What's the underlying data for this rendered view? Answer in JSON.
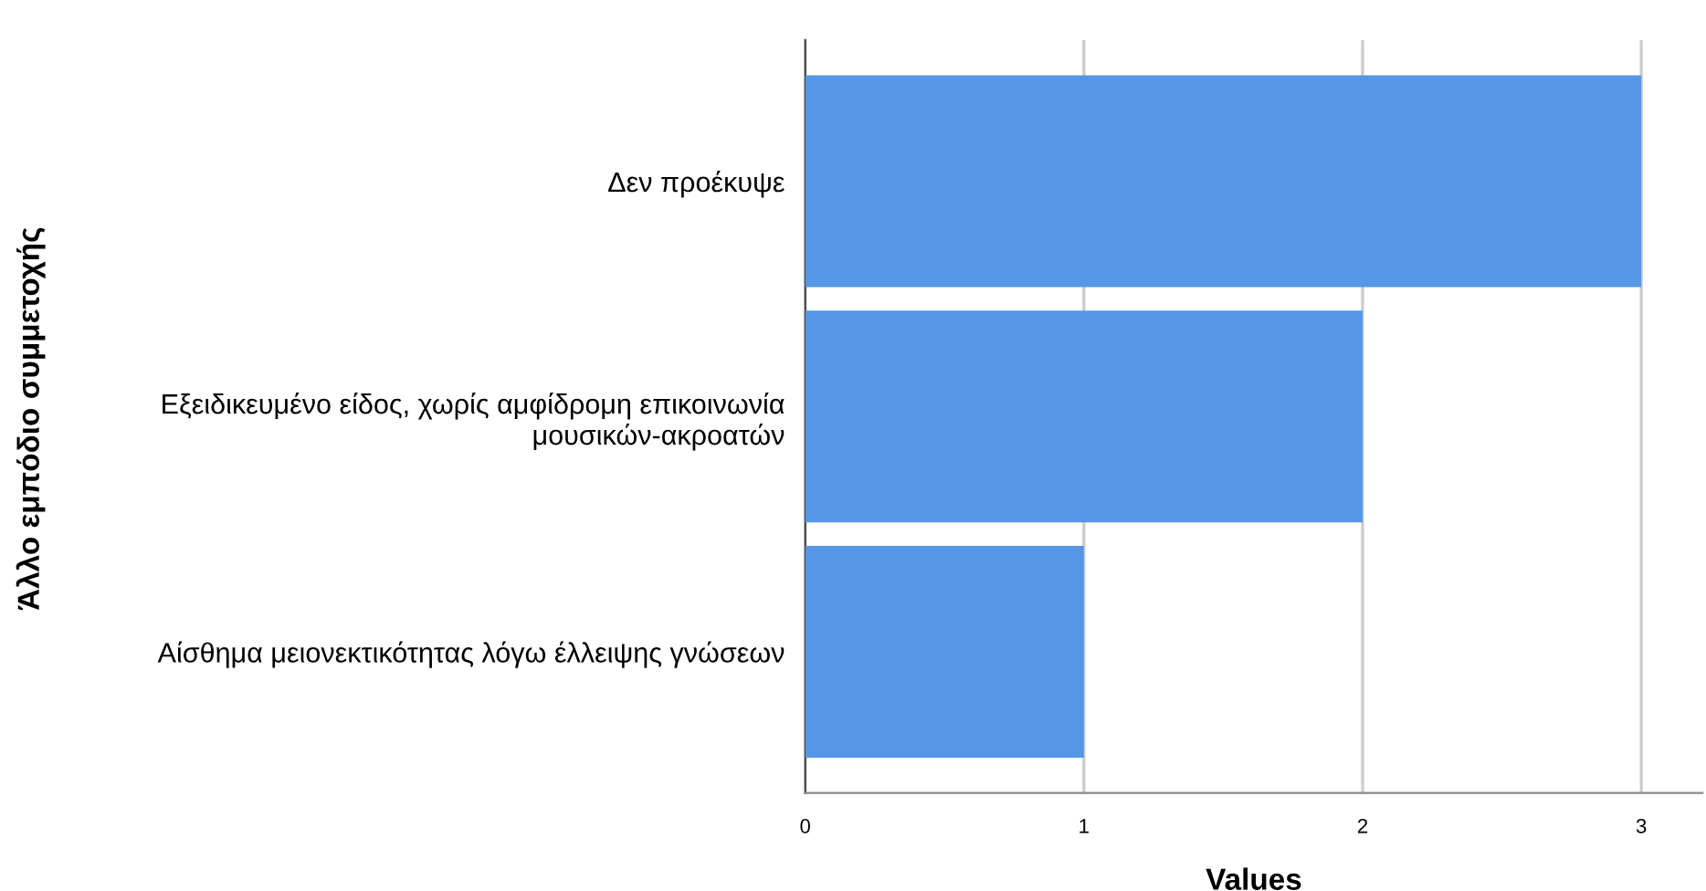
{
  "chart_data": {
    "type": "bar",
    "orientation": "horizontal",
    "categories": [
      "Δεν προέκυψε",
      "Εξειδικευμένο είδος, χωρίς αμφίδρομη επικοινωνία\nμουσικών-ακροατών",
      "Αίσθημα μειονεκτικότητας λόγω έλλειψης γνώσεων"
    ],
    "values": [
      3,
      2,
      1
    ],
    "color": "#5596e6",
    "xlim": [
      0,
      3.22
    ],
    "xticks": [
      0,
      1,
      2,
      3
    ],
    "xlabel": "Values",
    "ylabel": "Άλλο εμπόδιο συμμετοχής",
    "grid": "x"
  }
}
